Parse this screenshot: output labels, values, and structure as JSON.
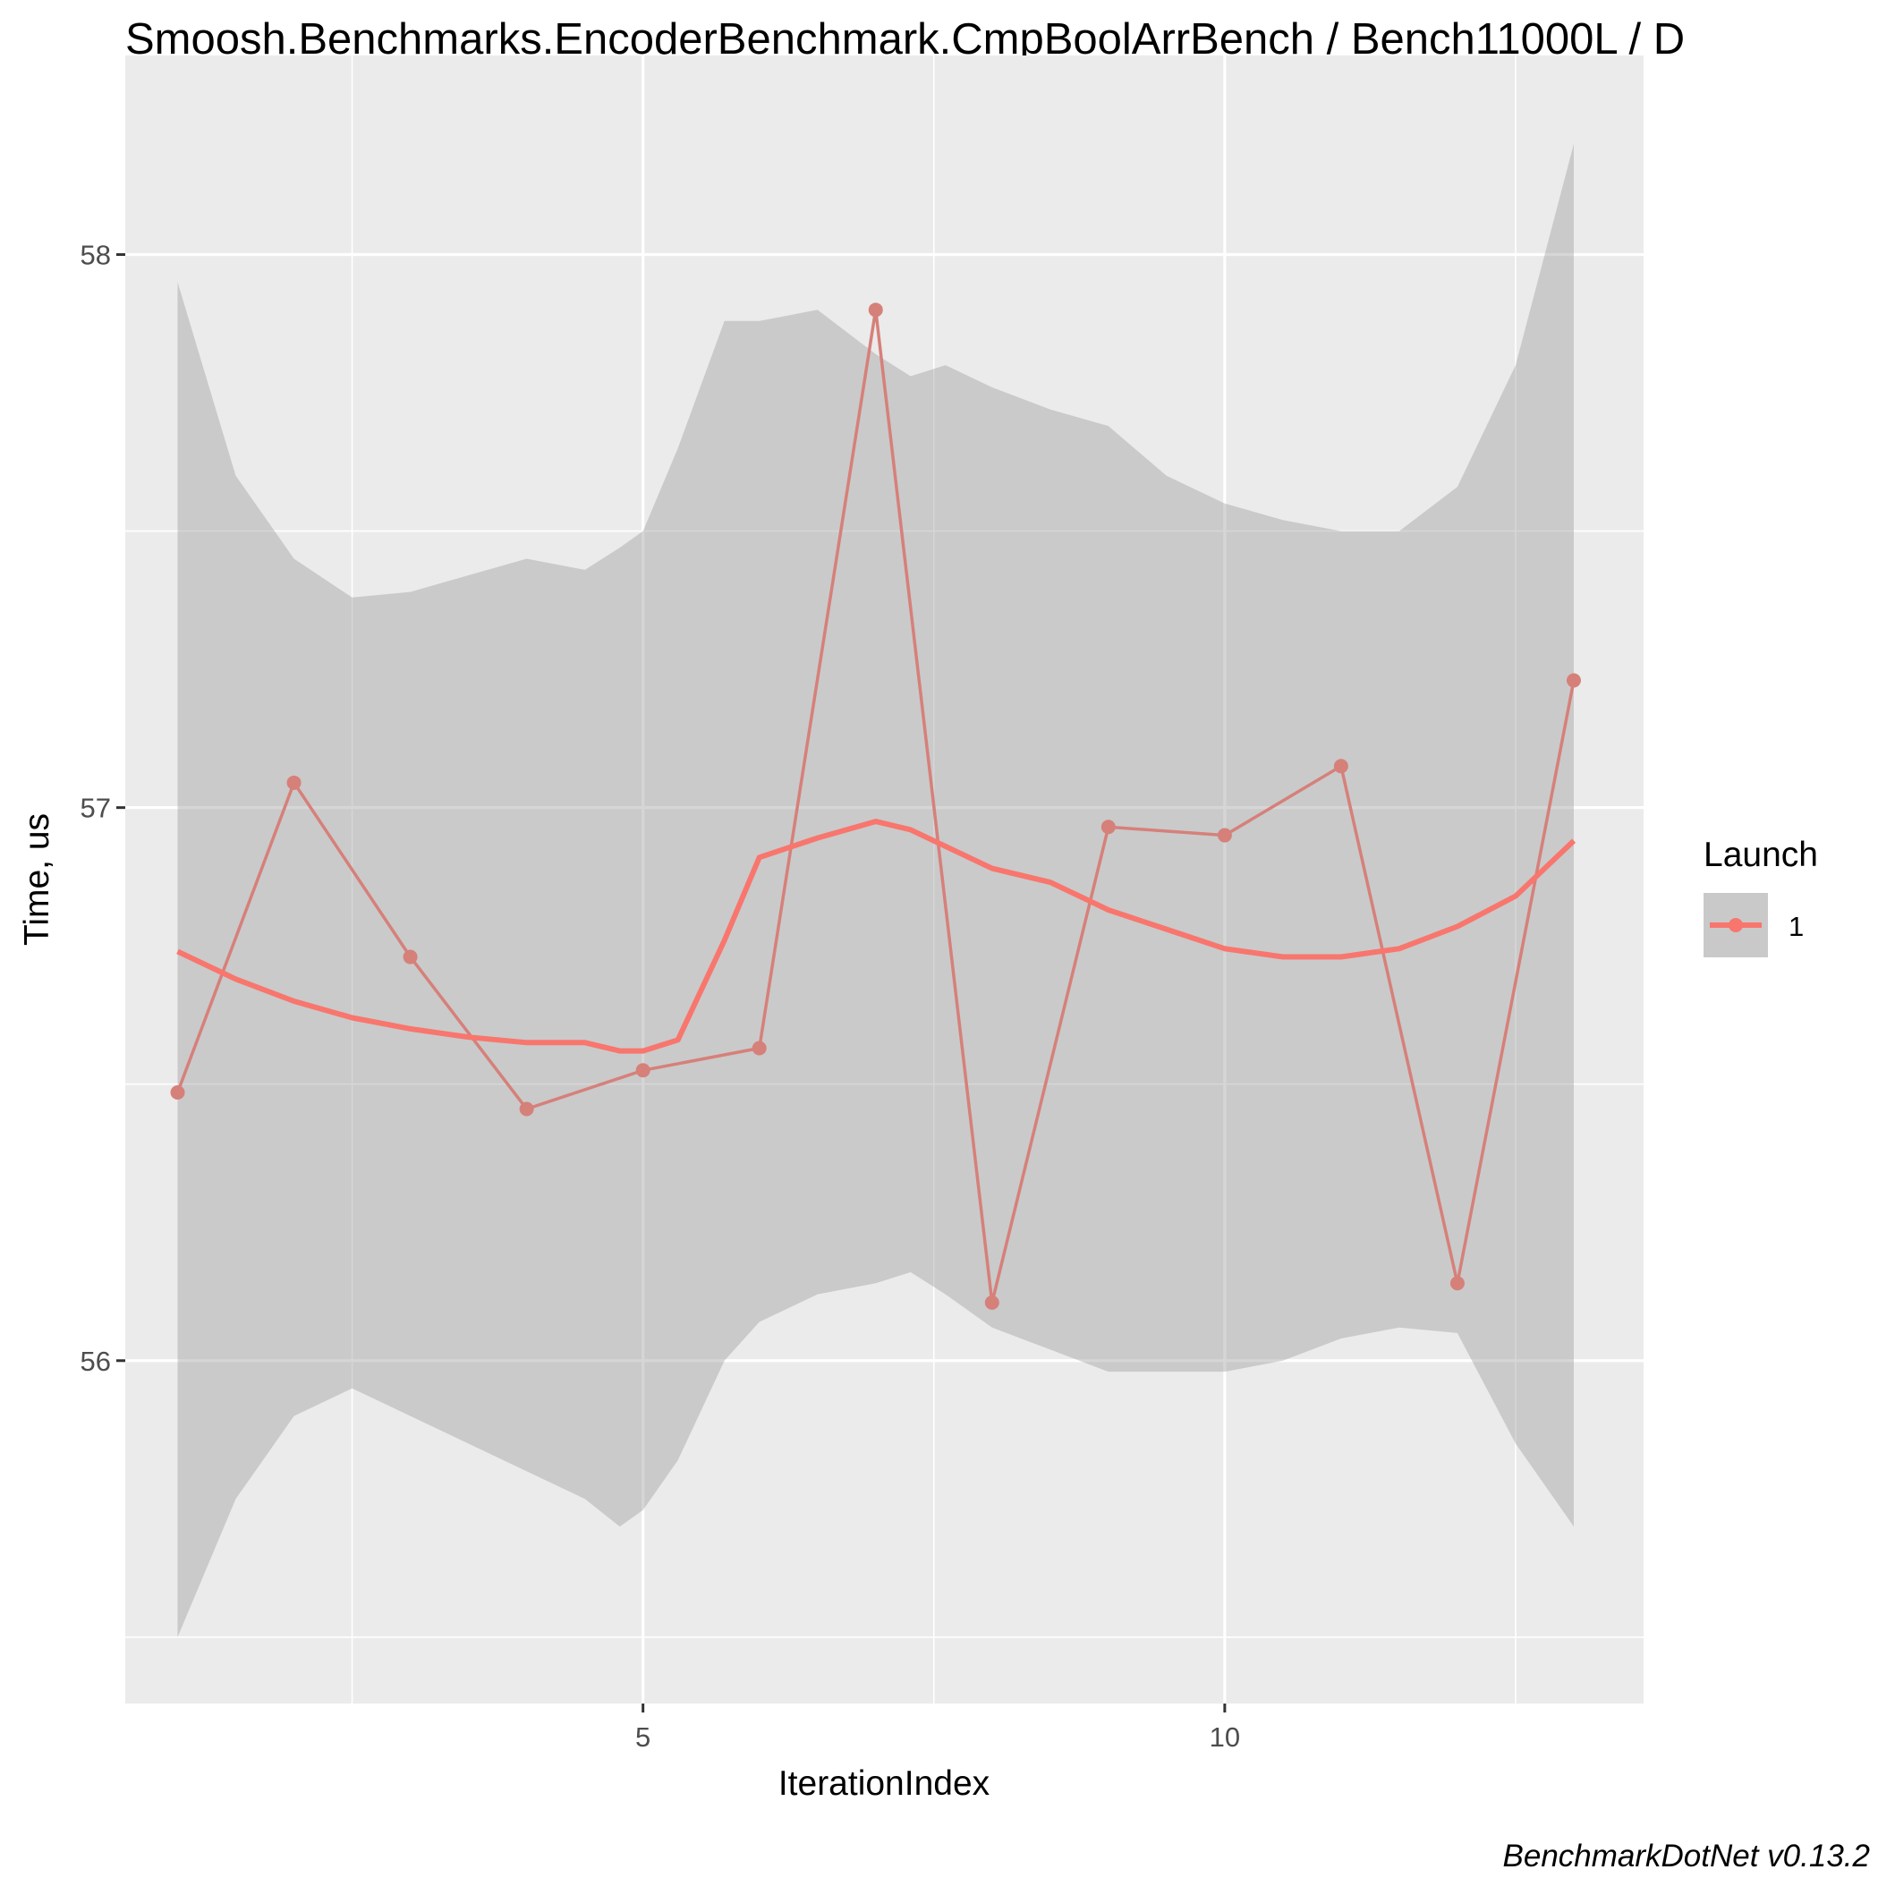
{
  "chart_data": {
    "type": "line",
    "title": "Smoosh.Benchmarks.EncoderBenchmark.CmpBoolArrBench / Bench11000L / D",
    "xlabel": "IterationIndex",
    "ylabel": "Time, us",
    "caption": "BenchmarkDotNet v0.13.2",
    "x_ticks": [
      5,
      10
    ],
    "y_ticks": [
      56,
      57,
      58
    ],
    "xlim": [
      0.55,
      13.6
    ],
    "ylim": [
      55.38,
      58.36
    ],
    "grid": true,
    "legend": {
      "title": "Launch",
      "position": "right",
      "entries": [
        "1"
      ]
    },
    "series": [
      {
        "name": "1",
        "x": [
          1,
          2,
          3,
          4,
          5,
          6,
          7,
          8,
          9,
          10,
          11,
          12,
          13
        ],
        "y": [
          56.485,
          57.045,
          56.73,
          56.455,
          56.525,
          56.565,
          57.9,
          56.105,
          56.965,
          56.95,
          57.075,
          56.14,
          57.23
        ]
      }
    ],
    "smooth": {
      "x": [
        1,
        1.5,
        2,
        2.5,
        3,
        3.5,
        4,
        4.5,
        4.8,
        5,
        5.3,
        5.7,
        6,
        6.5,
        7,
        7.3,
        7.6,
        8,
        8.5,
        9,
        9.5,
        10,
        10.5,
        11,
        11.5,
        12,
        12.5,
        13
      ],
      "y": [
        56.74,
        56.69,
        56.65,
        56.62,
        56.6,
        56.585,
        56.575,
        56.575,
        56.56,
        56.56,
        56.58,
        56.76,
        56.91,
        56.945,
        56.975,
        56.96,
        56.93,
        56.89,
        56.865,
        56.815,
        56.78,
        56.745,
        56.73,
        56.73,
        56.745,
        56.785,
        56.84,
        56.94
      ],
      "lower": [
        55.5,
        55.75,
        55.9,
        55.95,
        55.9,
        55.85,
        55.8,
        55.75,
        55.7,
        55.73,
        55.82,
        56.0,
        56.07,
        56.12,
        56.14,
        56.16,
        56.12,
        56.06,
        56.02,
        55.98,
        55.98,
        55.98,
        56.0,
        56.04,
        56.06,
        56.05,
        55.85,
        55.7
      ],
      "upper": [
        57.95,
        57.6,
        57.45,
        57.38,
        57.39,
        57.42,
        57.45,
        57.43,
        57.47,
        57.5,
        57.65,
        57.88,
        57.88,
        57.9,
        57.82,
        57.78,
        57.8,
        57.76,
        57.72,
        57.69,
        57.6,
        57.55,
        57.52,
        57.5,
        57.5,
        57.58,
        57.8,
        58.2
      ]
    }
  },
  "colors": {
    "panel": "#EBEBEB",
    "grid": "#FFFFFF",
    "line": "#F8766D",
    "ribbon": "#999999",
    "raw_line": "#D6807A"
  }
}
